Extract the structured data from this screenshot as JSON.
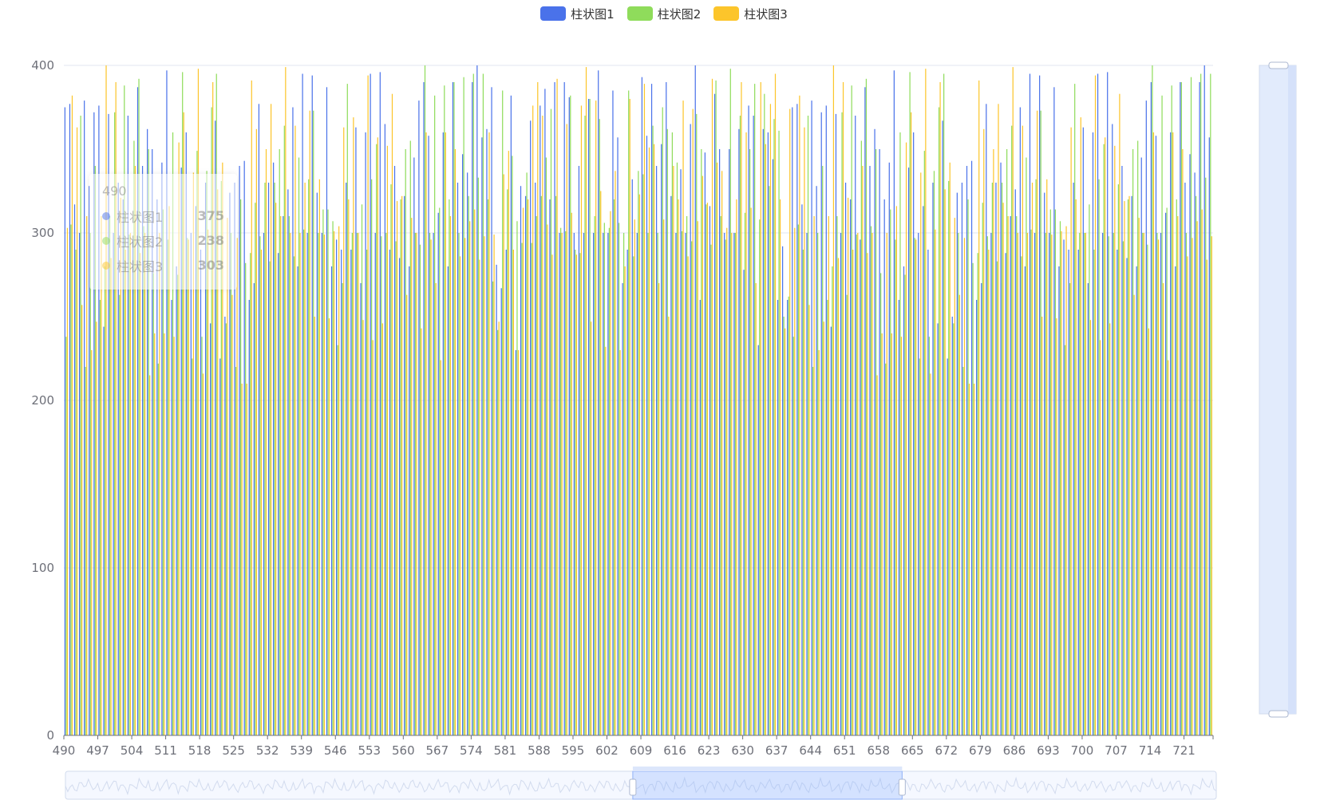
{
  "legend": {
    "items": [
      {
        "label": "柱状图1",
        "color": "#5470c6"
      },
      {
        "label": "柱状图2",
        "color": "#91cc75"
      },
      {
        "label": "柱状图3",
        "color": "#fac858"
      }
    ]
  },
  "tooltip": {
    "title": "490",
    "rows": [
      {
        "name": "柱状图1",
        "value": "375",
        "color": "#5470c6"
      },
      {
        "name": "柱状图2",
        "value": "238",
        "color": "#91cc75"
      },
      {
        "name": "柱状图3",
        "value": "303",
        "color": "#fac858"
      }
    ]
  },
  "chart_data": {
    "type": "bar",
    "x_range": [
      490,
      726
    ],
    "x_ticks": [
      "490",
      "497",
      "504",
      "511",
      "518",
      "525",
      "532",
      "539",
      "546",
      "553",
      "560",
      "567",
      "574",
      "581",
      "588",
      "595",
      "602",
      "609",
      "616",
      "623",
      "630",
      "637",
      "644",
      "651",
      "658",
      "665",
      "672",
      "679",
      "686",
      "693",
      "700",
      "707",
      "714",
      "721"
    ],
    "ylim": [
      0,
      400
    ],
    "y_ticks": [
      "0",
      "100",
      "200",
      "300",
      "400"
    ],
    "series": [
      {
        "name": "柱状图1",
        "color": "#5470c6"
      },
      {
        "name": "柱状图2",
        "color": "#91cc75"
      },
      {
        "name": "柱状图3",
        "color": "#fac858"
      }
    ],
    "values_by_series": [
      [
        375,
        377,
        317,
        300,
        379,
        328,
        372,
        376,
        244,
        371,
        300,
        330,
        320,
        370,
        296,
        387,
        340,
        362,
        350,
        320,
        342,
        397,
        260,
        280,
        339,
        360,
        300,
        316,
        290,
        330,
        246,
        367,
        225,
        250,
        324,
        330,
        340,
        343,
        260,
        270,
        377,
        300,
        330,
        342,
        288,
        310,
        326,
        375,
        280,
        395,
        300,
        394,
        324,
        300,
        387,
        280,
        296,
        290,
        330,
        290,
        363,
        270,
        360,
        395,
        300,
        396,
        365,
        290,
        340,
        285,
        322,
        280,
        345,
        379,
        390,
        358,
        300,
        312,
        360,
        280,
        390,
        330,
        347,
        336,
        390,
        400,
        357,
        362,
        387,
        281,
        267,
        290,
        382,
        230,
        328,
        322,
        367,
        330,
        376,
        386,
        320,
        390,
        300,
        390,
        381,
        300,
        340,
        300,
        380,
        300,
        397,
        300,
        300,
        385,
        357,
        270,
        290,
        332,
        300,
        393,
        358,
        389,
        340,
        353,
        390,
        322,
        300,
        338,
        300,
        365,
        400,
        260,
        348,
        316,
        383,
        350,
        300,
        350,
        300,
        362,
        278,
        376,
        370,
        233,
        362,
        360,
        344,
        260,
        292,
        260
      ],
      [
        238,
        305,
        290,
        370,
        220,
        300,
        340,
        260,
        280,
        310,
        372,
        263,
        388,
        299,
        355,
        392,
        304,
        350,
        276,
        222,
        314,
        296,
        360,
        275,
        396,
        297,
        225,
        349,
        238,
        337,
        375,
        395,
        331,
        246,
        300,
        220,
        320,
        282,
        288,
        318,
        298,
        330,
        283,
        330,
        350,
        364,
        310,
        286,
        345,
        302,
        332,
        373,
        300,
        314,
        314,
        307,
        233,
        270,
        389,
        300,
        300,
        317,
        290,
        332,
        353,
        298,
        300,
        329,
        295,
        320,
        350,
        355,
        300,
        293,
        400,
        300,
        382,
        315,
        388,
        320,
        390,
        300,
        393,
        322,
        395,
        333,
        395,
        320,
        271,
        242,
        385,
        326,
        346,
        307,
        294,
        336,
        294,
        310,
        322,
        345,
        374,
        322,
        303,
        301,
        382,
        290,
        288,
        370,
        380,
        310,
        368,
        306,
        303,
        320,
        306,
        300,
        385,
        286,
        337,
        335,
        300,
        364,
        300,
        375,
        362,
        360,
        342,
        301,
        310,
        295,
        371,
        350,
        317,
        293,
        391,
        310,
        296,
        398,
        300,
        370,
        312,
        350,
        389,
        308,
        383,
        328,
        368,
        361,
        250,
        262
      ],
      [
        303,
        382,
        363,
        257,
        310,
        230,
        247,
        310,
        400,
        285,
        390,
        321,
        290,
        300,
        340,
        288,
        300,
        215,
        240,
        300,
        240,
        316,
        238,
        354,
        372,
        296,
        336,
        398,
        216,
        302,
        390,
        326,
        342,
        309,
        263,
        297,
        210,
        210,
        391,
        362,
        290,
        350,
        377,
        318,
        310,
        399,
        300,
        364,
        300,
        330,
        373,
        250,
        332,
        299,
        249,
        301,
        304,
        363,
        320,
        369,
        300,
        248,
        394,
        236,
        357,
        246,
        352,
        383,
        319,
        322,
        263,
        309,
        300,
        243,
        360,
        296,
        270,
        224,
        360,
        310,
        350,
        286,
        297,
        307,
        314,
        284,
        298,
        360,
        299,
        247,
        335,
        349,
        290,
        230,
        315,
        320,
        376,
        390,
        370,
        305,
        287,
        392,
        300,
        365,
        312,
        287,
        376,
        399,
        247,
        379,
        325,
        232,
        313,
        337,
        230,
        280,
        380,
        308,
        323,
        389,
        351,
        353,
        270,
        308,
        250,
        340,
        320,
        379,
        286,
        374,
        307,
        334,
        318,
        392,
        342,
        337,
        303,
        300,
        320,
        390,
        360,
        315,
        270,
        390,
        353,
        377,
        395,
        320,
        243,
        374
      ]
    ],
    "grid": true,
    "legend_position": "top-center",
    "datazoom": {
      "x_start_fraction": 0.493,
      "x_end_fraction": 0.727,
      "y_start_fraction": 0.0,
      "y_end_fraction": 1.0
    }
  }
}
